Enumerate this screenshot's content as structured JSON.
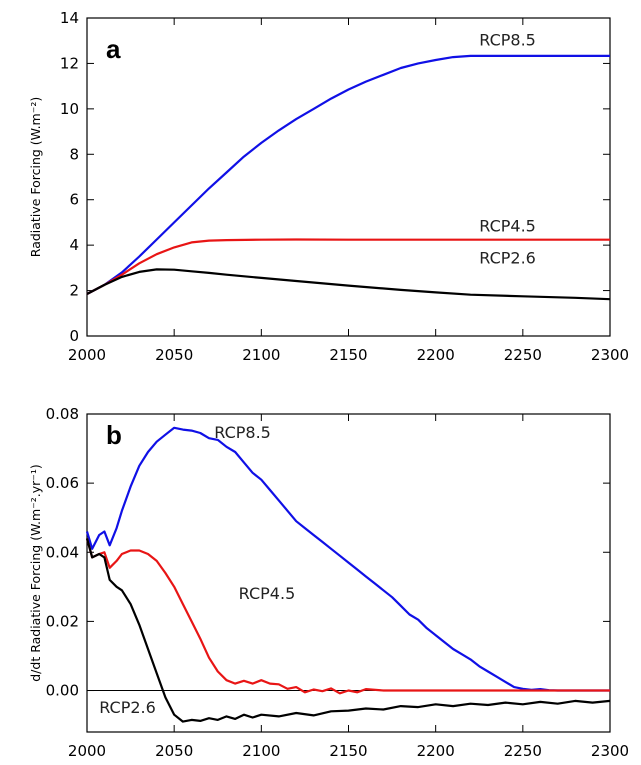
{
  "colors": {
    "RCP8.5": "#1010e6",
    "RCP4.5": "#e81515",
    "RCP2.6": "#000000"
  },
  "chart_data": [
    {
      "panel": "a",
      "type": "line",
      "title": "",
      "xlabel": "",
      "ylabel": "Radiative Forcing (W.m⁻²)",
      "xlim": [
        2000,
        2300
      ],
      "ylim": [
        0,
        14
      ],
      "xticks": [
        2000,
        2050,
        2100,
        2150,
        2200,
        2250,
        2300
      ],
      "yticks": [
        0,
        2,
        4,
        6,
        8,
        10,
        12,
        14
      ],
      "grid": false,
      "zero_line": false,
      "series": [
        {
          "name": "RCP8.5",
          "label_pos": [
            2225,
            12.8
          ],
          "x": [
            2000,
            2010,
            2020,
            2030,
            2040,
            2050,
            2060,
            2070,
            2080,
            2090,
            2100,
            2110,
            2120,
            2130,
            2140,
            2150,
            2160,
            2170,
            2180,
            2190,
            2200,
            2210,
            2220,
            2230,
            2240,
            2250,
            2260,
            2270,
            2280,
            2290,
            2300
          ],
          "y": [
            1.85,
            2.25,
            2.8,
            3.5,
            4.25,
            5.0,
            5.75,
            6.5,
            7.2,
            7.9,
            8.5,
            9.05,
            9.55,
            10.0,
            10.45,
            10.85,
            11.2,
            11.5,
            11.8,
            12.0,
            12.15,
            12.28,
            12.33,
            12.33,
            12.33,
            12.33,
            12.33,
            12.33,
            12.33,
            12.33,
            12.33
          ]
        },
        {
          "name": "RCP4.5",
          "label_pos": [
            2225,
            4.6
          ],
          "x": [
            2000,
            2010,
            2020,
            2030,
            2040,
            2050,
            2060,
            2070,
            2080,
            2100,
            2120,
            2150,
            2200,
            2250,
            2300
          ],
          "y": [
            1.85,
            2.25,
            2.7,
            3.2,
            3.6,
            3.9,
            4.12,
            4.2,
            4.22,
            4.24,
            4.25,
            4.24,
            4.24,
            4.24,
            4.24
          ]
        },
        {
          "name": "RCP2.6",
          "label_pos": [
            2225,
            3.2
          ],
          "x": [
            2000,
            2010,
            2020,
            2030,
            2040,
            2050,
            2060,
            2070,
            2080,
            2100,
            2120,
            2150,
            2180,
            2200,
            2220,
            2250,
            2280,
            2300
          ],
          "y": [
            1.85,
            2.25,
            2.6,
            2.82,
            2.93,
            2.92,
            2.85,
            2.78,
            2.7,
            2.56,
            2.42,
            2.22,
            2.03,
            1.92,
            1.82,
            1.75,
            1.68,
            1.62
          ]
        }
      ]
    },
    {
      "panel": "b",
      "type": "line",
      "title": "",
      "xlabel": "",
      "ylabel": "d/dt Radiative Forcing (W.m⁻².yr⁻¹)",
      "xlim": [
        2000,
        2300
      ],
      "ylim": [
        -0.012,
        0.08
      ],
      "xticks": [
        2000,
        2050,
        2100,
        2150,
        2200,
        2250,
        2300
      ],
      "yticks": [
        0.0,
        0.02,
        0.04,
        0.06,
        0.08
      ],
      "ytick_labels": [
        "0.00",
        "0.02",
        "0.04",
        "0.06",
        "0.08"
      ],
      "grid": false,
      "zero_line": true,
      "series": [
        {
          "name": "RCP8.5",
          "label_pos": [
            2073,
            0.073
          ],
          "x": [
            2000,
            2003,
            2007,
            2010,
            2013,
            2017,
            2020,
            2025,
            2030,
            2035,
            2040,
            2045,
            2050,
            2055,
            2060,
            2065,
            2070,
            2075,
            2080,
            2085,
            2090,
            2095,
            2100,
            2105,
            2110,
            2115,
            2120,
            2125,
            2130,
            2135,
            2140,
            2145,
            2150,
            2155,
            2160,
            2165,
            2170,
            2175,
            2180,
            2185,
            2190,
            2195,
            2200,
            2205,
            2210,
            2215,
            2220,
            2225,
            2230,
            2235,
            2240,
            2245,
            2250,
            2255,
            2260,
            2265,
            2270,
            2280,
            2290,
            2300
          ],
          "y": [
            0.046,
            0.041,
            0.045,
            0.046,
            0.042,
            0.047,
            0.052,
            0.059,
            0.065,
            0.069,
            0.072,
            0.074,
            0.076,
            0.0755,
            0.0752,
            0.0745,
            0.073,
            0.0725,
            0.0705,
            0.069,
            0.066,
            0.063,
            0.061,
            0.058,
            0.055,
            0.052,
            0.049,
            0.047,
            0.045,
            0.043,
            0.041,
            0.039,
            0.037,
            0.035,
            0.033,
            0.031,
            0.029,
            0.027,
            0.0245,
            0.022,
            0.0205,
            0.018,
            0.016,
            0.014,
            0.012,
            0.0105,
            0.009,
            0.007,
            0.0055,
            0.004,
            0.0025,
            0.001,
            0.0005,
            0.0002,
            0.0004,
            0.0001,
            0.0,
            0.0,
            0.0,
            0.0
          ]
        },
        {
          "name": "RCP4.5",
          "label_pos": [
            2087,
            0.0265
          ],
          "x": [
            2000,
            2003,
            2007,
            2010,
            2013,
            2017,
            2020,
            2025,
            2030,
            2035,
            2040,
            2045,
            2050,
            2055,
            2060,
            2065,
            2070,
            2075,
            2080,
            2085,
            2090,
            2095,
            2100,
            2105,
            2110,
            2115,
            2120,
            2125,
            2130,
            2135,
            2140,
            2145,
            2150,
            2155,
            2160,
            2170,
            2180,
            2200,
            2250,
            2300
          ],
          "y": [
            0.044,
            0.0385,
            0.0395,
            0.04,
            0.0355,
            0.0375,
            0.0395,
            0.0405,
            0.0405,
            0.0395,
            0.0375,
            0.034,
            0.03,
            0.025,
            0.02,
            0.015,
            0.0095,
            0.0055,
            0.003,
            0.002,
            0.0028,
            0.002,
            0.003,
            0.002,
            0.0018,
            0.0005,
            0.001,
            -0.0005,
            0.0003,
            -0.0002,
            0.0006,
            -0.0008,
            0.0,
            -0.0005,
            0.0004,
            0.0,
            0.0,
            0.0,
            0.0,
            0.0
          ]
        },
        {
          "name": "RCP2.6",
          "label_pos": [
            2007,
            -0.0065
          ],
          "x": [
            2000,
            2003,
            2007,
            2010,
            2013,
            2017,
            2020,
            2025,
            2030,
            2035,
            2040,
            2045,
            2050,
            2055,
            2060,
            2065,
            2070,
            2075,
            2080,
            2085,
            2090,
            2095,
            2100,
            2110,
            2120,
            2130,
            2140,
            2150,
            2160,
            2170,
            2180,
            2190,
            2200,
            2210,
            2220,
            2230,
            2240,
            2250,
            2260,
            2270,
            2280,
            2290,
            2300
          ],
          "y": [
            0.044,
            0.0385,
            0.0395,
            0.0385,
            0.032,
            0.03,
            0.029,
            0.025,
            0.019,
            0.012,
            0.005,
            -0.002,
            -0.007,
            -0.009,
            -0.0085,
            -0.0088,
            -0.008,
            -0.0085,
            -0.0075,
            -0.0082,
            -0.007,
            -0.0078,
            -0.007,
            -0.0075,
            -0.0065,
            -0.0072,
            -0.006,
            -0.0058,
            -0.0052,
            -0.0055,
            -0.0045,
            -0.0048,
            -0.004,
            -0.0045,
            -0.0038,
            -0.0042,
            -0.0035,
            -0.004,
            -0.0033,
            -0.0038,
            -0.003,
            -0.0035,
            -0.003
          ]
        }
      ]
    }
  ]
}
